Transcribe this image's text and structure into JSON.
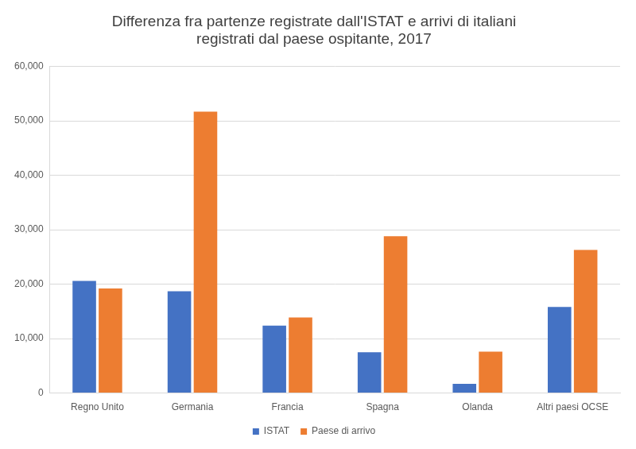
{
  "chart_data": {
    "type": "bar",
    "title": [
      "Differenza fra partenze registrate dall'ISTAT e arrivi di italiani",
      "registrati dal paese ospitante, 2017"
    ],
    "categories": [
      "Regno Unito",
      "Germania",
      "Francia",
      "Spagna",
      "Olanda",
      "Altri paesi OCSE"
    ],
    "series": [
      {
        "name": "ISTAT",
        "color": "#4472c4",
        "values": [
          20600,
          18700,
          12400,
          7500,
          1700,
          15800
        ]
      },
      {
        "name": "Paese di arrivo",
        "color": "#ed7d31",
        "values": [
          19200,
          51700,
          13900,
          28800,
          7600,
          26300
        ]
      }
    ],
    "ylim": [
      0,
      60000
    ],
    "yticks": [
      0,
      {
        "value": 10000,
        "label": "10,000"
      },
      {
        "value": 20000,
        "label": "20,000"
      },
      {
        "value": 30000,
        "label": "30,000"
      },
      {
        "value": 40000,
        "label": "40,000"
      },
      {
        "value": 50000,
        "label": "50,000"
      },
      {
        "value": 60000,
        "label": "60,000"
      }
    ],
    "grid": true,
    "legend": "bottom"
  }
}
